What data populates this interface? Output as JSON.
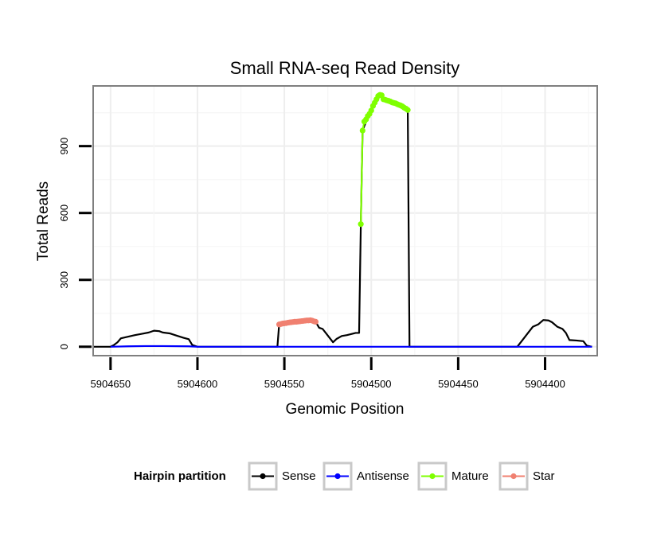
{
  "chart_data": {
    "type": "line",
    "title": "Small RNA-seq Read Density",
    "xlabel": "Genomic Position",
    "ylabel": "Total Reads",
    "xlim": [
      5904660,
      5904370
    ],
    "ylim": [
      -40,
      1170
    ],
    "x_reversed": true,
    "grid": true,
    "xticks": [
      5904650,
      5904600,
      5904550,
      5904500,
      5904450,
      5904400
    ],
    "xtick_labels": [
      "5904650",
      "5904600",
      "5904550",
      "5904500",
      "5904450",
      "5904400"
    ],
    "yticks": [
      0,
      300,
      600,
      900
    ],
    "ytick_labels": [
      "0",
      "300",
      "600",
      "900"
    ],
    "legend": {
      "title": "Hairpin partition",
      "position": "bottom",
      "entries": [
        {
          "label": "Sense",
          "color": "#000000"
        },
        {
          "label": "Antisense",
          "color": "#0000ff"
        },
        {
          "label": "Mature",
          "color": "#7fff00"
        },
        {
          "label": "Star",
          "color": "#f08070"
        }
      ]
    },
    "series": [
      {
        "name": "Sense",
        "color": "#000000",
        "markers": false,
        "points": [
          [
            5904660,
            0
          ],
          [
            5904650,
            0
          ],
          [
            5904648,
            8
          ],
          [
            5904646,
            20
          ],
          [
            5904644,
            38
          ],
          [
            5904640,
            45
          ],
          [
            5904636,
            52
          ],
          [
            5904632,
            58
          ],
          [
            5904628,
            64
          ],
          [
            5904625,
            72
          ],
          [
            5904622,
            70
          ],
          [
            5904620,
            64
          ],
          [
            5904616,
            60
          ],
          [
            5904612,
            50
          ],
          [
            5904608,
            40
          ],
          [
            5904605,
            34
          ],
          [
            5904603,
            8
          ],
          [
            5904600,
            0
          ],
          [
            5904580,
            0
          ],
          [
            5904560,
            0
          ],
          [
            5904554,
            0
          ],
          [
            5904553,
            100
          ],
          [
            5904549,
            105
          ],
          [
            5904545,
            110
          ],
          [
            5904541,
            113
          ],
          [
            5904538,
            115
          ],
          [
            5904535,
            118
          ],
          [
            5904532,
            112
          ],
          [
            5904530,
            85
          ],
          [
            5904528,
            80
          ],
          [
            5904526,
            60
          ],
          [
            5904524,
            40
          ],
          [
            5904522,
            20
          ],
          [
            5904520,
            35
          ],
          [
            5904517,
            48
          ],
          [
            5904514,
            52
          ],
          [
            5904511,
            58
          ],
          [
            5904509,
            62
          ],
          [
            5904507,
            62
          ],
          [
            5904506,
            550
          ],
          [
            5904505,
            970
          ],
          [
            5904503,
            1010
          ],
          [
            5904501,
            1040
          ],
          [
            5904499,
            1090
          ],
          [
            5904497,
            1120
          ],
          [
            5904495,
            1130
          ],
          [
            5904493,
            1105
          ],
          [
            5904490,
            1100
          ],
          [
            5904486,
            1090
          ],
          [
            5904483,
            1080
          ],
          [
            5904480,
            1070
          ],
          [
            5904479,
            1060
          ],
          [
            5904478,
            0
          ],
          [
            5904470,
            0
          ],
          [
            5904450,
            0
          ],
          [
            5904430,
            0
          ],
          [
            5904416,
            0
          ],
          [
            5904413,
            30
          ],
          [
            5904410,
            60
          ],
          [
            5904407,
            90
          ],
          [
            5904404,
            100
          ],
          [
            5904401,
            120
          ],
          [
            5904398,
            118
          ],
          [
            5904396,
            110
          ],
          [
            5904393,
            90
          ],
          [
            5904390,
            80
          ],
          [
            5904388,
            62
          ],
          [
            5904386,
            30
          ],
          [
            5904382,
            28
          ],
          [
            5904378,
            25
          ],
          [
            5904376,
            5
          ],
          [
            5904373,
            0
          ]
        ]
      },
      {
        "name": "Antisense",
        "color": "#0000ff",
        "markers": false,
        "points": [
          [
            5904650,
            0
          ],
          [
            5904640,
            2
          ],
          [
            5904630,
            3
          ],
          [
            5904620,
            3
          ],
          [
            5904605,
            2
          ],
          [
            5904600,
            0
          ],
          [
            5904373,
            0
          ]
        ]
      },
      {
        "name": "Mature",
        "color": "#7fff00",
        "markers": true,
        "points": [
          [
            5904506,
            550
          ],
          [
            5904505,
            970
          ],
          [
            5904504,
            1010
          ],
          [
            5904503,
            1020
          ],
          [
            5904502,
            1035
          ],
          [
            5904501,
            1045
          ],
          [
            5904500,
            1060
          ],
          [
            5904499,
            1080
          ],
          [
            5904498,
            1095
          ],
          [
            5904497,
            1110
          ],
          [
            5904496,
            1125
          ],
          [
            5904495,
            1130
          ],
          [
            5904494,
            1128
          ],
          [
            5904493,
            1110
          ],
          [
            5904492,
            1108
          ],
          [
            5904491,
            1105
          ],
          [
            5904490,
            1103
          ],
          [
            5904489,
            1100
          ],
          [
            5904488,
            1096
          ],
          [
            5904487,
            1094
          ],
          [
            5904486,
            1092
          ],
          [
            5904485,
            1088
          ],
          [
            5904484,
            1085
          ],
          [
            5904483,
            1082
          ],
          [
            5904482,
            1078
          ],
          [
            5904481,
            1072
          ],
          [
            5904480,
            1068
          ],
          [
            5904479,
            1062
          ]
        ]
      },
      {
        "name": "Star",
        "color": "#f08070",
        "markers": true,
        "points": [
          [
            5904553,
            100
          ],
          [
            5904552,
            102
          ],
          [
            5904551,
            104
          ],
          [
            5904550,
            105
          ],
          [
            5904549,
            106
          ],
          [
            5904548,
            108
          ],
          [
            5904547,
            109
          ],
          [
            5904546,
            110
          ],
          [
            5904545,
            111
          ],
          [
            5904544,
            112
          ],
          [
            5904543,
            112
          ],
          [
            5904542,
            113
          ],
          [
            5904541,
            114
          ],
          [
            5904540,
            115
          ],
          [
            5904539,
            116
          ],
          [
            5904538,
            117
          ],
          [
            5904537,
            118
          ],
          [
            5904536,
            118
          ],
          [
            5904535,
            119
          ],
          [
            5904534,
            117
          ],
          [
            5904533,
            114
          ],
          [
            5904532,
            112
          ]
        ]
      }
    ]
  }
}
